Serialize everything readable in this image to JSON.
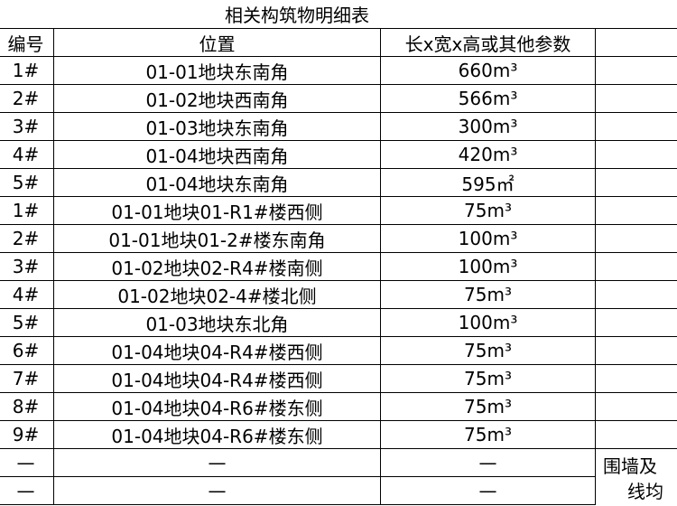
{
  "table": {
    "title": "相关构筑物明细表",
    "header": [
      "编号",
      "位置",
      "长x宽x高或其他参数"
    ],
    "rows": [
      [
        "1#",
        "01-01地块东南角",
        "660m³"
      ],
      [
        "2#",
        "01-02地块西南角",
        "566m³"
      ],
      [
        "3#",
        "01-03地块东南角",
        "300m³"
      ],
      [
        "4#",
        "01-04地块西南角",
        "420m³"
      ],
      [
        "5#",
        "01-04地块东南角",
        "595㎡"
      ],
      [
        "1#",
        "01-01地块01-R1#楼西侧",
        "75m³"
      ],
      [
        "2#",
        "01-01地块01-2#楼东南角",
        "100m³"
      ],
      [
        "3#",
        "01-02地块02-R4#楼南侧",
        "100m³"
      ],
      [
        "4#",
        "01-02地块02-4#楼北侧",
        "75m³"
      ],
      [
        "5#",
        "01-03地块东北角",
        "100m³"
      ],
      [
        "6#",
        "01-04地块04-R4#楼西侧",
        "75m³"
      ],
      [
        "7#",
        "01-04地块04-R4#楼西侧",
        "75m³"
      ],
      [
        "8#",
        "01-04地块04-R6#楼东侧",
        "75m³"
      ],
      [
        "9#",
        "01-04地块04-R6#楼东侧",
        "75m³"
      ],
      [
        "—",
        "—",
        "—"
      ],
      [
        "—",
        "—",
        "—"
      ]
    ],
    "note_lines": [
      "围墙及",
      "线均"
    ]
  }
}
